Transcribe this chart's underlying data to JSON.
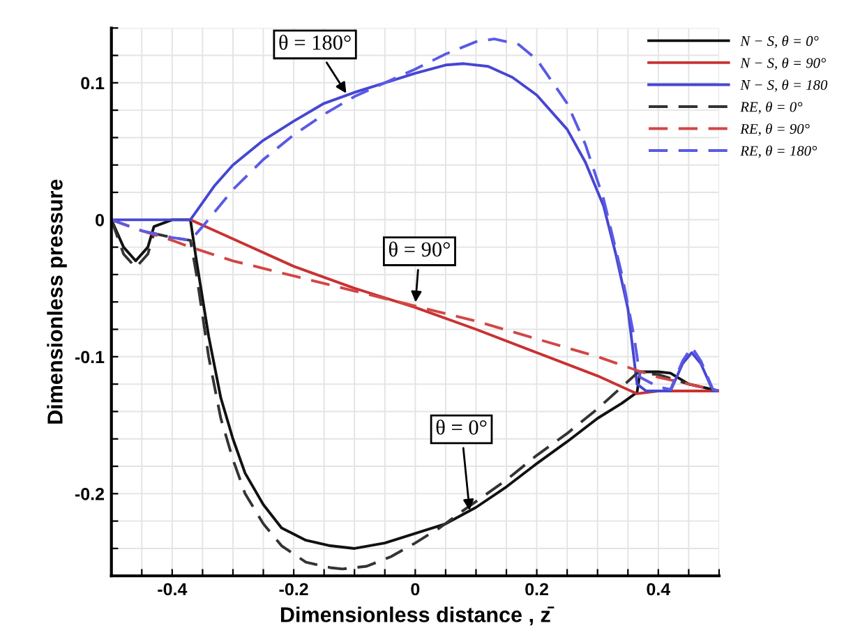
{
  "chart_data": {
    "type": "line",
    "xlabel": "Dimensionless distance , z̄",
    "ylabel": "Dimensionless pressure",
    "xlim": [
      -0.5,
      0.5
    ],
    "ylim": [
      -0.26,
      0.14
    ],
    "xticks": [
      {
        "value": -0.5,
        "label": null
      },
      {
        "value": -0.45,
        "label": null
      },
      -0.4,
      {
        "value": -0.35,
        "label": null
      },
      {
        "value": -0.3,
        "label": null
      },
      {
        "value": -0.25,
        "label": null
      },
      -0.2,
      {
        "value": -0.15,
        "label": null
      },
      {
        "value": -0.1,
        "label": null
      },
      {
        "value": -0.05,
        "label": null
      },
      0,
      {
        "value": 0.05,
        "label": null
      },
      {
        "value": 0.1,
        "label": null
      },
      {
        "value": 0.15,
        "label": null
      },
      0.2,
      {
        "value": 0.25,
        "label": null
      },
      {
        "value": 0.3,
        "label": null
      },
      {
        "value": 0.35,
        "label": null
      },
      0.4,
      {
        "value": 0.45,
        "label": null
      },
      {
        "value": 0.5,
        "label": null
      }
    ],
    "yticks": [
      {
        "value": -0.26,
        "label": null
      },
      {
        "value": -0.24,
        "label": null
      },
      {
        "value": -0.22,
        "label": null
      },
      -0.2,
      {
        "value": -0.18,
        "label": null
      },
      {
        "value": -0.16,
        "label": null
      },
      {
        "value": -0.14,
        "label": null
      },
      {
        "value": -0.12,
        "label": null
      },
      -0.1,
      {
        "value": -0.08,
        "label": null
      },
      {
        "value": -0.06,
        "label": null
      },
      {
        "value": -0.04,
        "label": null
      },
      {
        "value": -0.02,
        "label": null
      },
      0,
      {
        "value": 0.02,
        "label": null
      },
      {
        "value": 0.04,
        "label": null
      },
      {
        "value": 0.06,
        "label": null
      },
      {
        "value": 0.08,
        "label": null
      },
      0.1,
      {
        "value": 0.12,
        "label": null
      },
      {
        "value": 0.14,
        "label": null
      }
    ],
    "grid": true,
    "legend": "top right",
    "marker": "none",
    "series": [
      {
        "name": "N − S, θ = 0°",
        "color": "#111111",
        "line_style": "solid",
        "x": [
          -0.5,
          -0.48,
          -0.46,
          -0.44,
          -0.43,
          -0.4,
          -0.37,
          -0.36,
          -0.34,
          -0.32,
          -0.3,
          -0.28,
          -0.25,
          -0.22,
          -0.18,
          -0.14,
          -0.1,
          -0.05,
          0,
          0.05,
          0.1,
          0.15,
          0.2,
          0.25,
          0.3,
          0.34,
          0.365,
          0.37,
          0.4,
          0.42,
          0.45,
          0.5
        ],
        "values": [
          0,
          -0.02,
          -0.03,
          -0.02,
          -0.005,
          0,
          0,
          -0.03,
          -0.085,
          -0.13,
          -0.16,
          -0.185,
          -0.208,
          -0.225,
          -0.234,
          -0.238,
          -0.24,
          -0.236,
          -0.229,
          -0.222,
          -0.21,
          -0.195,
          -0.178,
          -0.162,
          -0.145,
          -0.134,
          -0.126,
          -0.111,
          -0.111,
          -0.112,
          -0.12,
          -0.125
        ]
      },
      {
        "name": "N − S, θ = 90°",
        "color": "#c83232",
        "line_style": "solid",
        "x": [
          -0.37,
          -0.3,
          -0.2,
          -0.1,
          0,
          0.1,
          0.2,
          0.3,
          0.365,
          0.4,
          0.45,
          0.5
        ],
        "values": [
          0,
          -0.014,
          -0.034,
          -0.05,
          -0.064,
          -0.08,
          -0.097,
          -0.114,
          -0.127,
          -0.125,
          -0.125,
          -0.125
        ]
      },
      {
        "name": "N − S, θ = 180",
        "color": "#4646d2",
        "line_style": "solid",
        "x": [
          -0.5,
          -0.45,
          -0.4,
          -0.37,
          -0.33,
          -0.3,
          -0.25,
          -0.2,
          -0.15,
          -0.1,
          -0.05,
          0,
          0.05,
          0.08,
          0.12,
          0.16,
          0.2,
          0.25,
          0.28,
          0.31,
          0.33,
          0.35,
          0.365,
          0.38,
          0.42,
          0.44,
          0.455,
          0.47,
          0.49,
          0.5
        ],
        "values": [
          0,
          0,
          0,
          0,
          0.025,
          0.04,
          0.058,
          0.072,
          0.085,
          0.093,
          0.1,
          0.107,
          0.113,
          0.114,
          0.112,
          0.104,
          0.091,
          0.066,
          0.042,
          0.01,
          -0.025,
          -0.065,
          -0.12,
          -0.125,
          -0.125,
          -0.105,
          -0.097,
          -0.105,
          -0.125,
          -0.125
        ]
      },
      {
        "name": "RE, θ = 0°",
        "color": "#333333",
        "line_style": "dashed",
        "x": [
          -0.5,
          -0.48,
          -0.46,
          -0.44,
          -0.43,
          -0.4,
          -0.37,
          -0.36,
          -0.34,
          -0.32,
          -0.3,
          -0.28,
          -0.25,
          -0.22,
          -0.18,
          -0.14,
          -0.12,
          -0.08,
          -0.04,
          0,
          0.04,
          0.08,
          0.15,
          0.2,
          0.25,
          0.3,
          0.34,
          0.365,
          0.4,
          0.45,
          0.5
        ],
        "values": [
          0,
          -0.025,
          -0.035,
          -0.025,
          -0.01,
          -0.013,
          -0.015,
          -0.04,
          -0.1,
          -0.145,
          -0.175,
          -0.2,
          -0.222,
          -0.238,
          -0.25,
          -0.254,
          -0.255,
          -0.253,
          -0.246,
          -0.236,
          -0.225,
          -0.212,
          -0.19,
          -0.172,
          -0.156,
          -0.138,
          -0.122,
          -0.112,
          -0.113,
          -0.12,
          -0.125
        ]
      },
      {
        "name": "RE, θ = 90°",
        "color": "#d24646",
        "line_style": "dashed",
        "x": [
          -0.5,
          -0.45,
          -0.4,
          -0.37,
          -0.3,
          -0.2,
          -0.1,
          0,
          0.1,
          0.2,
          0.3,
          0.365,
          0.4,
          0.45,
          0.5
        ],
        "values": [
          0,
          -0.008,
          -0.015,
          -0.02,
          -0.03,
          -0.041,
          -0.052,
          -0.063,
          -0.074,
          -0.087,
          -0.1,
          -0.11,
          -0.115,
          -0.12,
          -0.125
        ]
      },
      {
        "name": "RE, θ = 180°",
        "color": "#5a5ae6",
        "line_style": "dashed",
        "x": [
          -0.5,
          -0.45,
          -0.4,
          -0.37,
          -0.35,
          -0.3,
          -0.25,
          -0.2,
          -0.15,
          -0.1,
          -0.05,
          0,
          0.05,
          0.1,
          0.13,
          0.17,
          0.2,
          0.25,
          0.28,
          0.31,
          0.34,
          0.36,
          0.37,
          0.4,
          0.42,
          0.44,
          0.455,
          0.47,
          0.49,
          0.5
        ],
        "values": [
          0,
          -0.008,
          -0.013,
          -0.015,
          -0.005,
          0.022,
          0.044,
          0.062,
          0.077,
          0.09,
          0.1,
          0.11,
          0.121,
          0.13,
          0.132,
          0.128,
          0.117,
          0.085,
          0.055,
          0.015,
          -0.04,
          -0.085,
          -0.115,
          -0.122,
          -0.124,
          -0.103,
          -0.093,
          -0.103,
          -0.124,
          -0.125
        ]
      }
    ],
    "annotations": [
      {
        "text": "θ = 180°",
        "x": -0.11,
        "y": 0.09
      },
      {
        "text": "θ = 90°",
        "x": 0,
        "y": -0.063
      },
      {
        "text": "θ = 0°",
        "x": 0.09,
        "y": -0.215
      }
    ]
  }
}
